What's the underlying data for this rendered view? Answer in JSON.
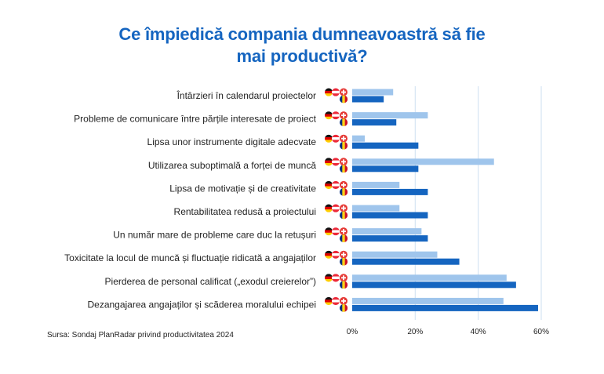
{
  "title": {
    "line1": "Ce împiedică compania dumneavoastră să fie",
    "line2": "mai productivă?"
  },
  "source": "Sursa: Sondaj PlanRadar privind productivitatea 2024",
  "colors": {
    "title": "#1565c0",
    "series_light": "#9fc5ec",
    "series_dark": "#1565c0",
    "grid": "#d6e4f3"
  },
  "chart_data": {
    "type": "bar",
    "orientation": "horizontal",
    "categories": [
      "Întârzieri în calendarul proiectelor",
      "Probleme de comunicare între părțile interesate de proiect",
      "Lipsa unor instrumente digitale adecvate",
      "Utilizarea suboptimală a forței de muncă",
      "Lipsa de motivație și de creativitate",
      "Rentabilitatea redusă a proiectului",
      "Un număr mare de probleme care duc la retușuri",
      "Toxicitate la locul de muncă și fluctuație ridicată a angajaților",
      "Pierderea de personal calificat („exodul creierelor”)",
      "Dezangajarea angajaților și scăderea moralului echipei"
    ],
    "series": [
      {
        "flags": "germany-austria-switzerland-flag-icons",
        "color": "#9fc5ec",
        "values": [
          13,
          24,
          4,
          45,
          15,
          15,
          22,
          27,
          49,
          48
        ]
      },
      {
        "flags": "romania-flag-icon",
        "color": "#1565c0",
        "values": [
          10,
          14,
          21,
          21,
          24,
          24,
          24,
          34,
          52,
          59
        ]
      }
    ],
    "xlim": [
      0,
      60
    ],
    "xticks": [
      0,
      20,
      40,
      60
    ],
    "xtick_labels": [
      "0%",
      "20%",
      "40%",
      "60%"
    ],
    "grid": true,
    "legend": "flag icons next to each bar"
  }
}
